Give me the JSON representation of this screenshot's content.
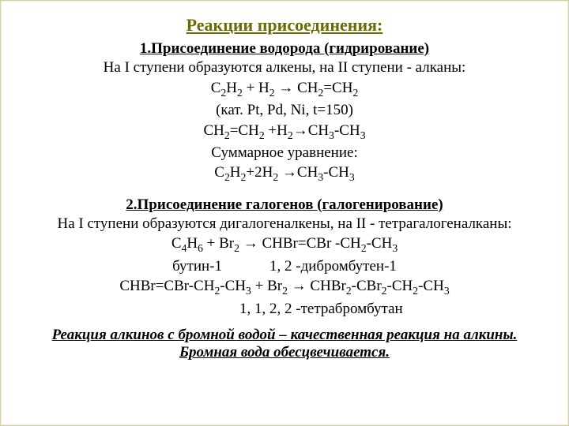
{
  "colors": {
    "title": "#6b6b00",
    "body": "#000000",
    "bg": "#ffffff"
  },
  "font": {
    "family": "Times New Roman",
    "title_size": 22,
    "body_size": 19,
    "sub_size": 19
  },
  "title": "Реакции присоединения:",
  "s1": {
    "heading": "1.Присоединение водорода (гидрирование)",
    "line1": "На I ступени образуются алкены, на II ступени - алканы:",
    "eq1": "С₂H₂ + H₂ → CH₂=CH₂",
    "cond": "(кат. Pt, Pd, Ni, t=150)",
    "eq2": "CH₂=CH₂ +H₂→CH₃-CH₃",
    "sum_label": "Суммарное уравнение:",
    "eq_sum": "С₂H₂+2H₂ →СН₃-СН₃"
  },
  "s2": {
    "heading": "2.Присоединение галогенов (галогенирование)",
    "line1": "На I ступени образуются дигалогеналкены, на II - тетрагалогеналканы:",
    "eq1": "С₄H₆  + Br₂  → CHBr=CBr -CH₂-CH₃",
    "name_l": "бутин-1",
    "name_r": "1, 2 -дибромбутен-1",
    "eq2": "CHBr=CBr-CH₂-CH₃ + Br₂ → CHBr₂-CBr₂-CH₂-CH₃",
    "name2": "1, 1, 2, 2 -тетрабромбутан"
  },
  "note1": "Реакция алкинов с бромной водой – качественная реакция на алкины.",
  "note2": "Бромная вода обесцвечивается."
}
